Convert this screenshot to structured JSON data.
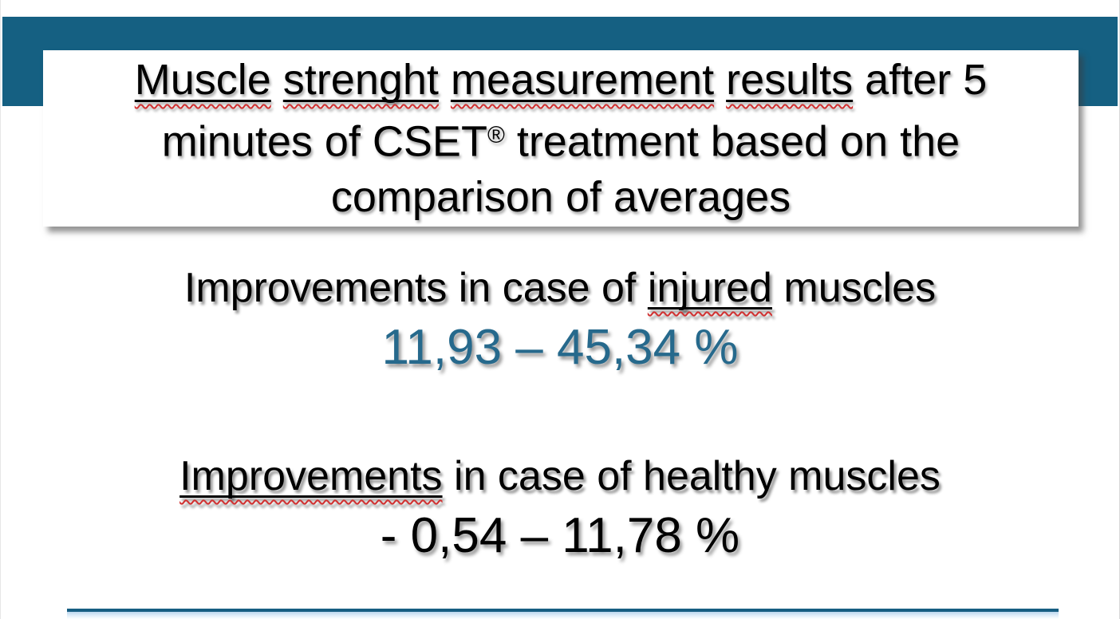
{
  "page": {
    "colors": {
      "band": "#156082",
      "squiggle": "#D13030",
      "value_teal": "#26698C",
      "value_black": "#000000",
      "divider": "#175E82",
      "glow": "#BDD7EE"
    },
    "title_box": {
      "lines": [
        {
          "segs": [
            "Muscle",
            " ",
            "strenght",
            " ",
            "measurement",
            " ",
            "results",
            " after 5"
          ]
        },
        {
          "segs": [
            "minutes of CSET",
            "®",
            " treatment based on the"
          ]
        },
        {
          "segs": [
            "comparison of averages"
          ]
        }
      ]
    },
    "sections": [
      {
        "heading": {
          "segs": [
            "Improvements in case of ",
            "injured",
            " muscles"
          ]
        },
        "value": "11,93 – 45,34 %"
      },
      {
        "heading": {
          "segs": [
            "Improvements",
            " in case of healthy muscles"
          ]
        },
        "value": "- 0,54 – 11,78 %"
      }
    ]
  }
}
